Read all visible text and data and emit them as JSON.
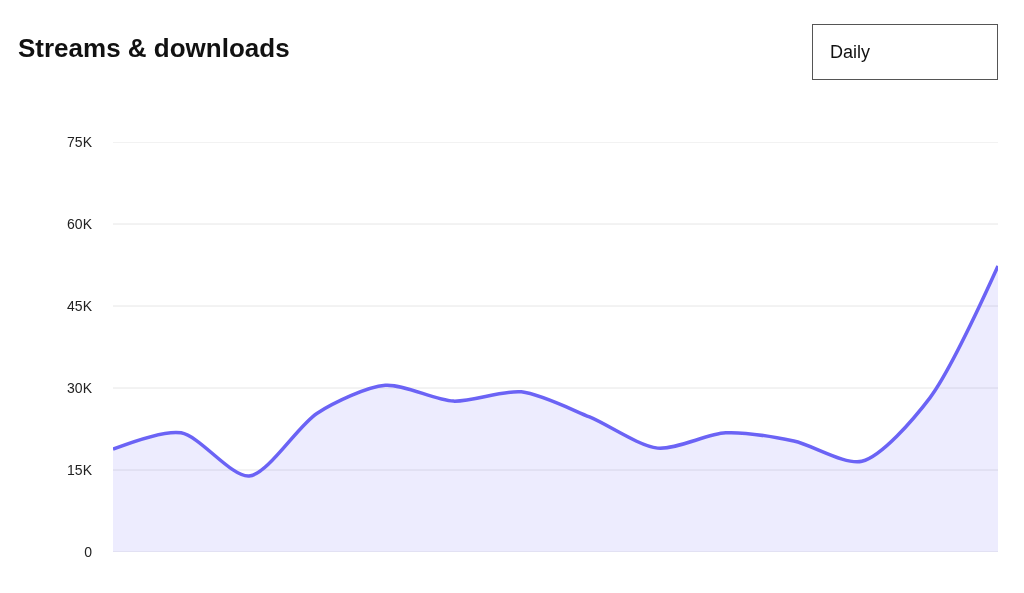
{
  "chart_data": {
    "type": "area",
    "title": "Streams & downloads",
    "annotations": [
      "Daily"
    ],
    "categories": [
      null,
      null,
      null,
      null,
      null,
      null,
      null,
      null,
      null,
      null,
      null,
      null,
      null,
      null
    ],
    "series": [
      {
        "color": "#6b63f5",
        "values": [
          18800,
          21800,
          13900,
          25400,
          30500,
          27600,
          29300,
          24700,
          19000,
          21800,
          20300,
          16600,
          28200,
          52300
        ]
      }
    ],
    "ylim": [
      0,
      75000
    ],
    "yticks": [
      0,
      {
        "value": 15000,
        "label": "15K"
      },
      {
        "value": 30000,
        "label": "30K"
      },
      {
        "value": 45000,
        "label": "45K"
      },
      {
        "value": 60000,
        "label": "60K"
      },
      {
        "value": 75000,
        "label": "75K"
      }
    ],
    "grid": "y",
    "tick_labels": "y"
  }
}
